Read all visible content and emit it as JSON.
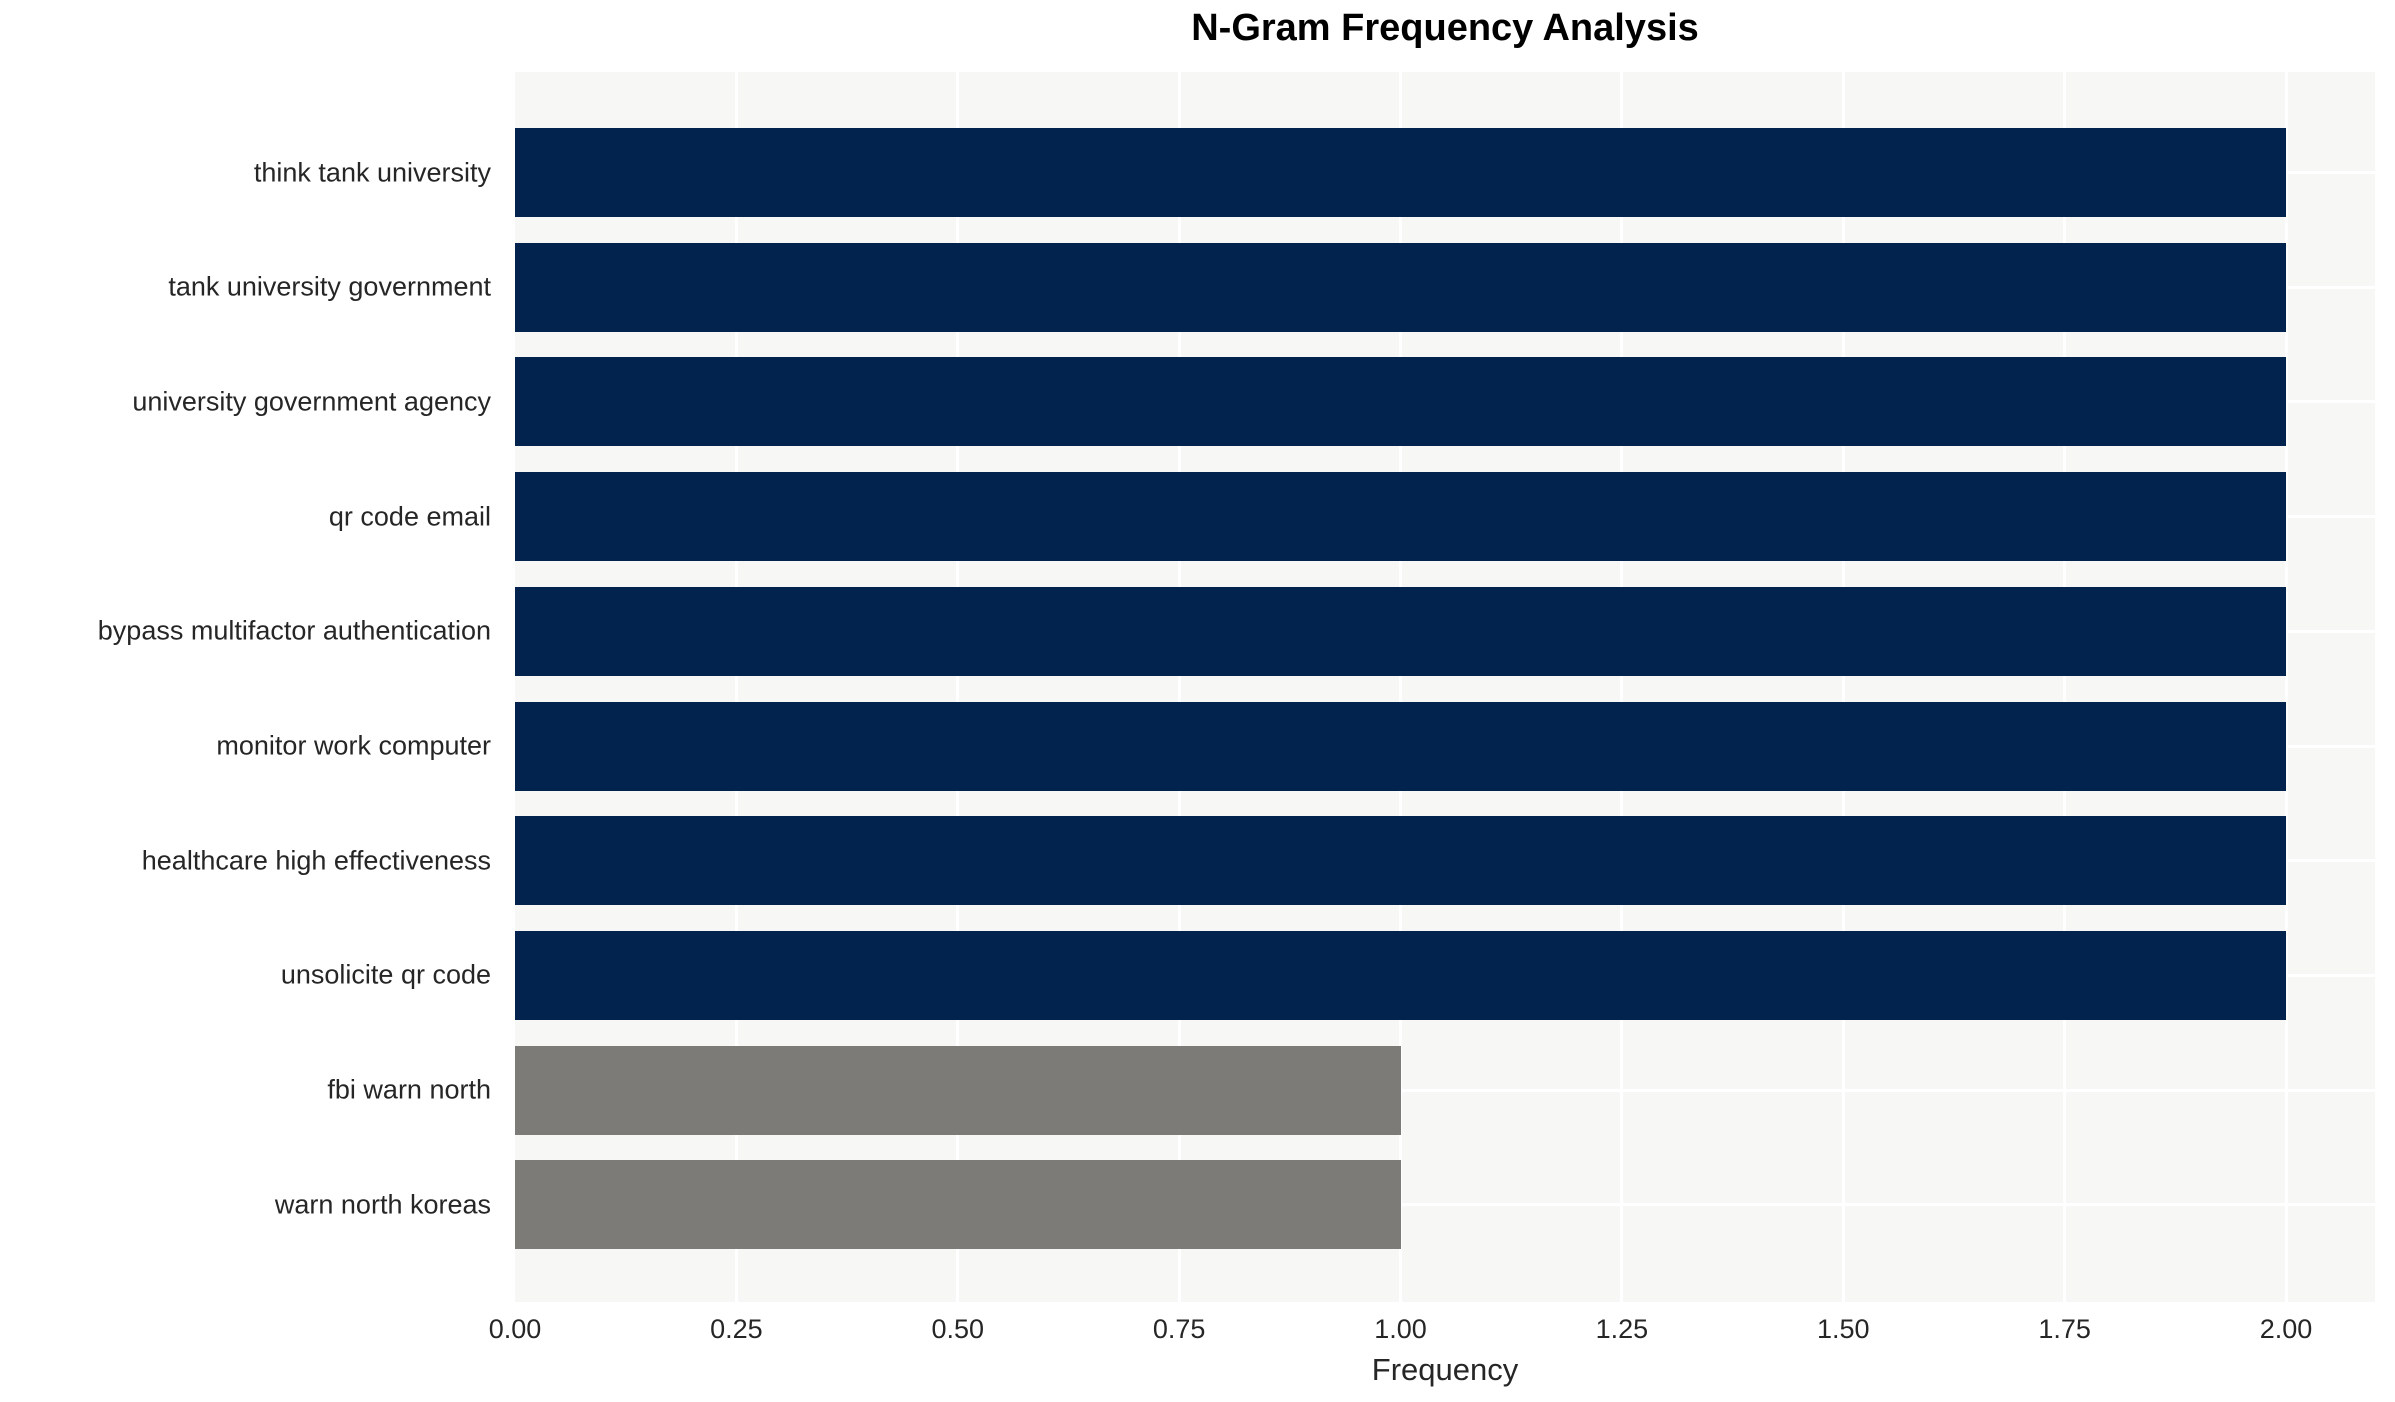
{
  "chart_data": {
    "type": "bar",
    "orientation": "horizontal",
    "title": "N-Gram Frequency Analysis",
    "xlabel": "Frequency",
    "ylabel": "",
    "categories": [
      "think tank university",
      "tank university government",
      "university government agency",
      "qr code email",
      "bypass multifactor authentication",
      "monitor work computer",
      "healthcare high effectiveness",
      "unsolicite qr code",
      "fbi warn north",
      "warn north koreas"
    ],
    "values": [
      2,
      2,
      2,
      2,
      2,
      2,
      2,
      2,
      1,
      1
    ],
    "bar_colors": [
      "#02234E",
      "#02234E",
      "#02234E",
      "#02234E",
      "#02234E",
      "#02234E",
      "#02234E",
      "#02234E",
      "#7C7B78",
      "#7C7B78"
    ],
    "xlim": [
      0,
      2.1
    ],
    "xticks": [
      0.0,
      0.25,
      0.5,
      0.75,
      1.0,
      1.25,
      1.5,
      1.75,
      2.0
    ],
    "xtick_labels": [
      "0.00",
      "0.25",
      "0.50",
      "0.75",
      "1.00",
      "1.25",
      "1.50",
      "1.75",
      "2.00"
    ],
    "grid": true,
    "legend": null,
    "colors": {
      "highlight_bar": "#02234E",
      "muted_bar": "#7C7B78",
      "plot_background": "#F7F7F6",
      "gridline": "#FFFFFF",
      "tick_text": "#262626",
      "title_text": "#000000"
    }
  }
}
